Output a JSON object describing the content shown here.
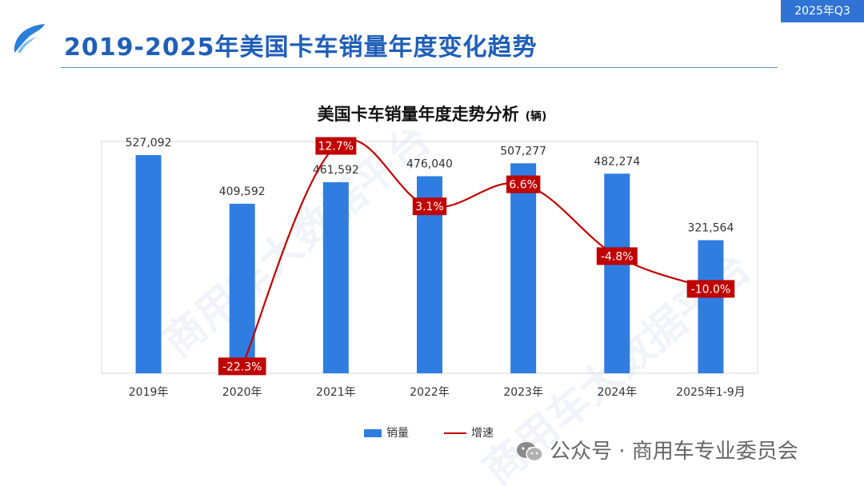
{
  "badge": "2025年Q3",
  "page_title": "2019-2025年美国卡车销量年度变化趋势",
  "chart_title": "美国卡车销量年度走势分析",
  "chart_unit": "(辆)",
  "legend": {
    "bar": "销量",
    "line": "增速"
  },
  "footer": {
    "text": "公众号 · 商用车专业委员会",
    "icon": "wechat-icon"
  },
  "watermark": "商用车大数据平台",
  "colors": {
    "bar": "#2f7de1",
    "line": "#c00000",
    "title": "#1f5fb8",
    "badge": "#2f74d4"
  },
  "chart_data": {
    "type": "bar",
    "categories": [
      "2019年",
      "2020年",
      "2021年",
      "2022年",
      "2023年",
      "2024年",
      "2025年1-9月"
    ],
    "series": [
      {
        "name": "销量",
        "type": "bar",
        "values": [
          527092,
          409592,
          461592,
          476040,
          507277,
          482274,
          321564
        ],
        "labels": [
          "527,092",
          "409,592",
          "461,592",
          "476,040",
          "507,277",
          "482,274",
          "321,564"
        ]
      },
      {
        "name": "增速",
        "type": "line",
        "unit": "%",
        "values": [
          null,
          -22.3,
          12.7,
          3.1,
          6.6,
          -4.8,
          -10.0
        ],
        "labels": [
          "",
          "-22.3%",
          "12.7%",
          "3.1%",
          "6.6%",
          "-4.8%",
          "-10.0%"
        ]
      }
    ],
    "bar_ylim": [
      0,
      560000
    ],
    "line_ylim": [
      -30,
      20
    ],
    "grid": false,
    "legend_position": "bottom"
  }
}
